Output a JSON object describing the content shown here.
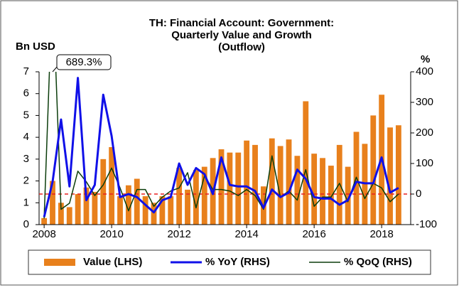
{
  "chart_data": {
    "type": "combo",
    "title": [
      "TH: Financial Account: Government:",
      "Quarterly Value and Growth",
      "(Outflow)"
    ],
    "y_label": "Bn USD",
    "y2_label": "%",
    "annotation": {
      "text": "689.3%",
      "series": 2,
      "index": 1
    },
    "x": [
      2008,
      2008.25,
      2008.5,
      2008.75,
      2009,
      2009.25,
      2009.5,
      2009.75,
      2010,
      2010.25,
      2010.5,
      2010.75,
      2011,
      2011.25,
      2011.5,
      2011.75,
      2012,
      2012.25,
      2012.5,
      2012.75,
      2013,
      2013.25,
      2013.5,
      2013.75,
      2014,
      2014.25,
      2014.5,
      2014.75,
      2015,
      2015.25,
      2015.5,
      2015.75,
      2016,
      2016.25,
      2016.5,
      2016.75,
      2017,
      2017.25,
      2017.5,
      2017.75,
      2018,
      2018.25,
      2018.5
    ],
    "series": [
      {
        "name": "Value (LHS)",
        "type": "bar",
        "axis": "y",
        "color": "#e8801c",
        "values": [
          0.3,
          2.0,
          1.0,
          0.8,
          1.4,
          1.7,
          1.5,
          3.0,
          3.55,
          1.3,
          1.8,
          2.1,
          1.3,
          1.0,
          1.3,
          1.3,
          2.6,
          1.6,
          2.5,
          2.65,
          3.05,
          3.45,
          3.3,
          3.3,
          3.85,
          3.65,
          1.75,
          3.95,
          3.6,
          3.9,
          3.15,
          5.65,
          3.25,
          3.05,
          2.7,
          3.65,
          2.65,
          4.25,
          3.7,
          5.0,
          5.95,
          4.45,
          4.55
        ]
      },
      {
        "name": "% YoY (RHS)",
        "type": "line",
        "axis": "y2",
        "color": "#1010e8",
        "width": 3,
        "values": [
          -75,
          40,
          244,
          25,
          380,
          -20,
          30,
          325,
          190,
          -10,
          0,
          -10,
          -35,
          -60,
          -20,
          -10,
          100,
          30,
          85,
          65,
          0,
          120,
          30,
          25,
          25,
          10,
          -45,
          15,
          -10,
          5,
          80,
          50,
          -10,
          -15,
          -15,
          -35,
          -20,
          40,
          35,
          35,
          120,
          5,
          20
        ]
      },
      {
        "name": "% QoQ (RHS)",
        "type": "line",
        "axis": "y2",
        "color": "#0b3d0b",
        "width": 1.5,
        "values": [
          -80,
          689.3,
          -50,
          -30,
          75,
          40,
          -5,
          30,
          85,
          20,
          -55,
          15,
          15,
          -40,
          -10,
          10,
          20,
          70,
          -45,
          60,
          15,
          15,
          10,
          -5,
          15,
          -5,
          -50,
          125,
          -10,
          10,
          -20,
          80,
          -40,
          -10,
          -10,
          35,
          -25,
          55,
          -15,
          35,
          20,
          -25,
          0
        ]
      }
    ],
    "reference_line": {
      "axis": "y2",
      "value": 0,
      "color": "#e82020",
      "dashed": true
    },
    "xlim": [
      2007.85,
      2018.86
    ],
    "xticks": [
      2008,
      2010,
      2012,
      2014,
      2016,
      2018
    ],
    "ylim": [
      0,
      7
    ],
    "yticks": [
      0,
      1,
      2,
      3,
      4,
      5,
      6,
      7
    ],
    "y2lim": [
      -100,
      400
    ],
    "y2ticks": [
      -100,
      0,
      100,
      200,
      300,
      400
    ],
    "legend": "bottom"
  }
}
